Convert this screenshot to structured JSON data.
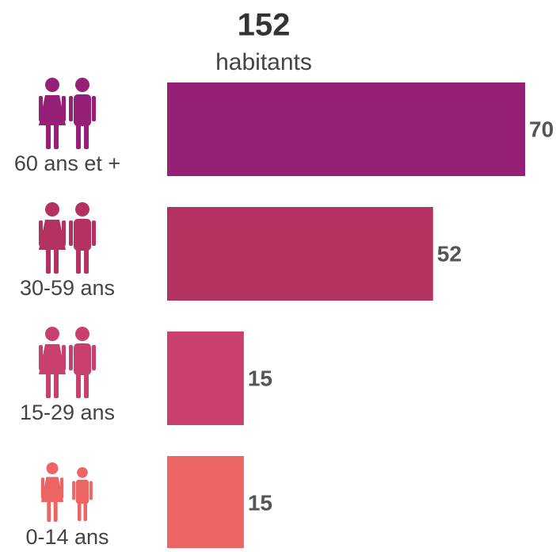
{
  "chart_data": {
    "type": "bar",
    "orientation": "horizontal",
    "title": "152",
    "subtitle": "habitants",
    "categories": [
      "60 ans et +",
      "30-59 ans",
      "15-29 ans",
      "0-14 ans"
    ],
    "values": [
      70,
      52,
      15,
      15
    ],
    "colors": [
      "#961f78",
      "#b43262",
      "#c8416d",
      "#ec6464"
    ]
  }
}
